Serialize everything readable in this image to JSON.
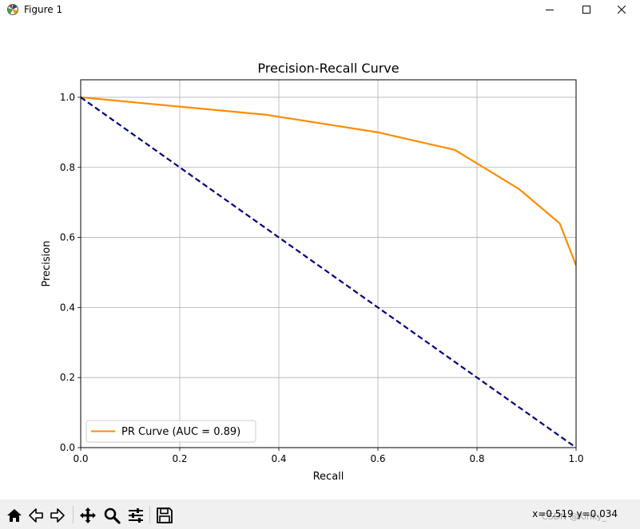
{
  "window": {
    "title": "Figure 1"
  },
  "chart_data": {
    "type": "line",
    "title": "Precision-Recall Curve",
    "xlabel": "Recall",
    "ylabel": "Precision",
    "xlim": [
      0.0,
      1.0
    ],
    "ylim": [
      0.0,
      1.05
    ],
    "xticks": [
      0.0,
      0.2,
      0.4,
      0.6,
      0.8,
      1.0
    ],
    "yticks": [
      0.0,
      0.2,
      0.4,
      0.6,
      0.8,
      1.0
    ],
    "xtick_labels": [
      "0.0",
      "0.2",
      "0.4",
      "0.6",
      "0.8",
      "1.0"
    ],
    "ytick_labels": [
      "0.0",
      "0.2",
      "0.4",
      "0.6",
      "0.8",
      "1.0"
    ],
    "grid": true,
    "legend_position": "lower-left",
    "series": [
      {
        "name": "PR Curve (AUC = 0.89)",
        "color": "#ff8c00",
        "style": "solid",
        "x": [
          0.0,
          0.375,
          0.6,
          0.755,
          0.885,
          0.967,
          1.0
        ],
        "y": [
          1.0,
          0.95,
          0.9,
          0.85,
          0.738,
          0.64,
          0.52
        ]
      },
      {
        "name": "",
        "color": "#000080",
        "style": "dashed",
        "x": [
          0.0,
          1.0
        ],
        "y": [
          1.0,
          0.0
        ]
      }
    ]
  },
  "toolbar": {
    "coordinates": "x=0.519 y=0.034",
    "watermark": "CSDN @Kinky_"
  }
}
